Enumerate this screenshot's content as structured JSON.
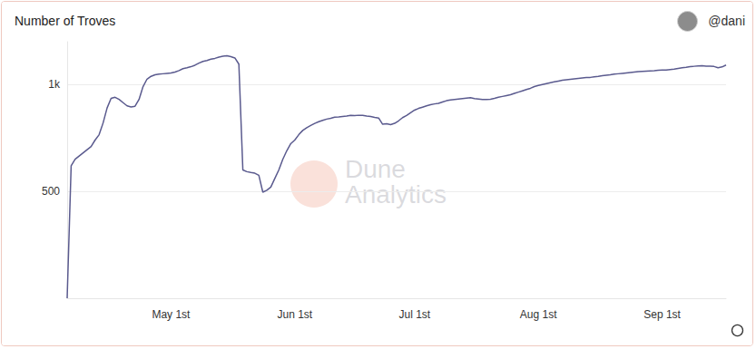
{
  "chart_data": {
    "type": "line",
    "title": "Number of Troves",
    "author": "@dani",
    "watermark": [
      "Dune",
      "Analytics"
    ],
    "categories": [
      null,
      null,
      null,
      null,
      null,
      null,
      null,
      null,
      null,
      null,
      null,
      null,
      null,
      null,
      null,
      null,
      null,
      null,
      null,
      null,
      null,
      null,
      null,
      null,
      null,
      null,
      "May 1st",
      null,
      null,
      null,
      null,
      null,
      null,
      null,
      null,
      null,
      null,
      null,
      null,
      null,
      null,
      null,
      null,
      null,
      null,
      null,
      null,
      null,
      null,
      null,
      null,
      null,
      null,
      null,
      null,
      null,
      null,
      "Jun 1st",
      null,
      null,
      null,
      null,
      null,
      null,
      null,
      null,
      null,
      null,
      null,
      null,
      null,
      null,
      null,
      null,
      null,
      null,
      null,
      null,
      null,
      null,
      null,
      null,
      null,
      null,
      null,
      null,
      null,
      "Jul 1st",
      null,
      null,
      null,
      null,
      null,
      null,
      null,
      null,
      null,
      null,
      null,
      null,
      null,
      null,
      null,
      null,
      null,
      null,
      null,
      null,
      null,
      null,
      null,
      null,
      null,
      null,
      null,
      null,
      null,
      null,
      "Aug 1st",
      null,
      null,
      null,
      null,
      null,
      null,
      null,
      null,
      null,
      null,
      null,
      null,
      null,
      null,
      null,
      null,
      null,
      null,
      null,
      null,
      null,
      null,
      null,
      null,
      null,
      null,
      null,
      null,
      null,
      null,
      "Sep 1st",
      null,
      null,
      null,
      null,
      null,
      null,
      null,
      null,
      null,
      null,
      null,
      null,
      null,
      null,
      null,
      null
    ],
    "values": [
      0,
      620,
      650,
      665,
      680,
      695,
      710,
      740,
      765,
      820,
      890,
      935,
      940,
      930,
      915,
      900,
      895,
      898,
      930,
      990,
      1025,
      1038,
      1045,
      1048,
      1050,
      1052,
      1054,
      1058,
      1065,
      1074,
      1078,
      1083,
      1090,
      1100,
      1108,
      1112,
      1118,
      1122,
      1128,
      1132,
      1134,
      1130,
      1124,
      1095,
      600,
      592,
      588,
      585,
      575,
      496,
      505,
      520,
      560,
      600,
      650,
      690,
      723,
      740,
      765,
      785,
      798,
      808,
      818,
      826,
      832,
      838,
      842,
      847,
      848,
      850,
      852,
      855,
      854,
      856,
      855,
      852,
      850,
      846,
      843,
      814,
      816,
      812,
      818,
      830,
      845,
      855,
      868,
      880,
      888,
      894,
      900,
      905,
      909,
      912,
      918,
      924,
      928,
      930,
      932,
      934,
      936,
      938,
      934,
      932,
      930,
      930,
      931,
      935,
      940,
      944,
      948,
      952,
      958,
      964,
      970,
      976,
      982,
      990,
      995,
      1000,
      1004,
      1008,
      1012,
      1016,
      1020,
      1022,
      1024,
      1026,
      1028,
      1030,
      1032,
      1033,
      1036,
      1038,
      1041,
      1043,
      1045,
      1048,
      1050,
      1052,
      1054,
      1056,
      1058,
      1060,
      1061,
      1062,
      1063,
      1064,
      1066,
      1067,
      1068,
      1070,
      1072,
      1075,
      1078,
      1080,
      1083,
      1085,
      1087,
      1088,
      1086,
      1085,
      1084,
      1078,
      1082,
      1091
    ],
    "color": "#5a5a8e",
    "ylim": [
      0,
      1200
    ],
    "yticks": [
      500,
      {
        "value": 1000,
        "label": "1k"
      }
    ],
    "grid": true
  }
}
